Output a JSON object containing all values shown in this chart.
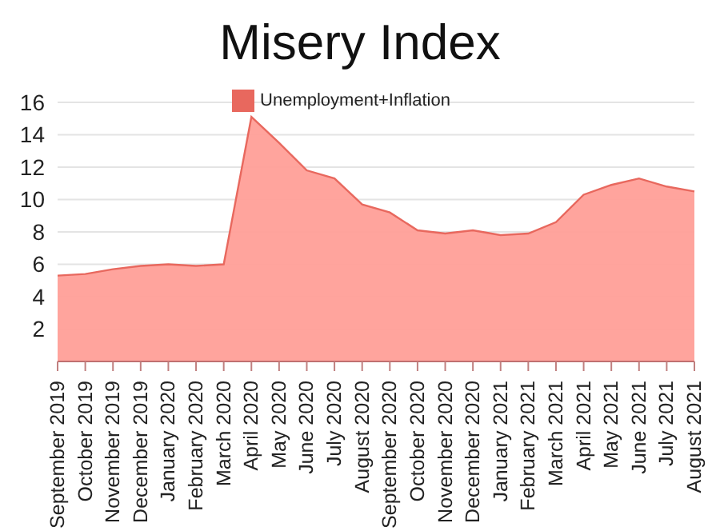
{
  "chart_data": {
    "type": "area",
    "title": "Misery Index",
    "categories": [
      "September 2019",
      "October 2019",
      "November 2019",
      "December 2019",
      "January 2020",
      "February 2020",
      "March 2020",
      "April 2020",
      "May 2020",
      "June 2020",
      "July 2020",
      "August 2020",
      "September 2020",
      "October 2020",
      "November 2020",
      "December 2020",
      "January 2021",
      "February 2021",
      "March 2021",
      "April 2021",
      "May 2021",
      "June 2021",
      "July 2021",
      "August 2021"
    ],
    "series": [
      {
        "name": "Unemployment+Inflation",
        "color": "#ff9f98",
        "values": [
          5.3,
          5.4,
          5.7,
          5.9,
          6.0,
          5.9,
          6.0,
          15.1,
          13.5,
          11.8,
          11.3,
          9.7,
          9.2,
          8.1,
          7.9,
          8.1,
          7.8,
          7.9,
          8.6,
          10.3,
          10.9,
          11.3,
          10.8,
          10.5
        ]
      }
    ],
    "ylim": [
      0,
      16
    ],
    "yticks": [
      {
        "value": 0,
        "label": null
      },
      2,
      4,
      6,
      8,
      10,
      12,
      14,
      16
    ],
    "grid": "y",
    "legend": "top",
    "marker": "none"
  }
}
